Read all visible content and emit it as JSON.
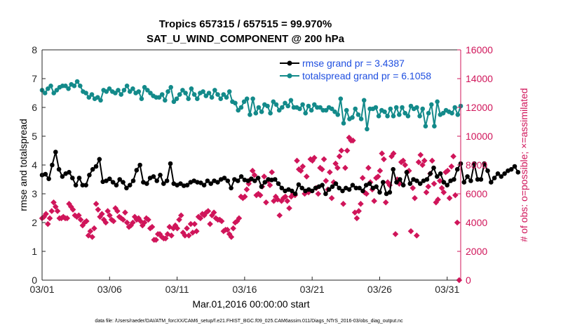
{
  "chart_data": {
    "type": "line",
    "title": "Tropics 657315 / 657515 = 99.970%",
    "subtitle": "SAT_U_WIND_COMPONENT @ 200 hPa",
    "xlabel": "Mar.01,2016 00:00:00 start",
    "ylabel": "rmse and totalspread",
    "y2label": "# of obs: o=possible; ×=assimilated",
    "footer": "data file: /Users/raeder/DAI/ATM_forcXX/CAM6_setup/f.e21.FHIST_BGC.f09_025.CAM6assim.011/Diags_NTrS_2016-03/obs_diag_output.nc",
    "xlim": [
      1,
      32
    ],
    "ylim": [
      0,
      8
    ],
    "y2lim": [
      0,
      16000
    ],
    "x_ticks": [
      1,
      6,
      11,
      16,
      21,
      26,
      31
    ],
    "x_tick_labels": [
      "03/01",
      "03/06",
      "03/11",
      "03/16",
      "03/21",
      "03/26",
      "03/31"
    ],
    "y_ticks": [
      "0",
      "1",
      "2",
      "3",
      "4",
      "5",
      "6",
      "7",
      "8"
    ],
    "y2_ticks": [
      "0",
      "2000",
      "4000",
      "6000",
      "8000",
      "10000",
      "12000",
      "14000",
      "16000"
    ],
    "colors": {
      "rmse": "#000000",
      "totalspread": "#138a8a",
      "obs": "#d0155a",
      "legend_text": "#1f4fe0",
      "axis_right": "#d0155a"
    },
    "legend": {
      "position": "top-right",
      "entries": [
        "rmse grand pr = 3.4387",
        "totalspread grand pr = 6.1058"
      ]
    },
    "series": [
      {
        "name": "rmse",
        "axis": "left",
        "values": [
          3.65,
          3.68,
          3.52,
          4.0,
          4.45,
          3.85,
          3.6,
          3.7,
          3.75,
          3.55,
          3.3,
          3.55,
          3.3,
          3.3,
          3.65,
          3.85,
          3.95,
          4.2,
          3.42,
          3.45,
          3.52,
          3.4,
          3.3,
          3.5,
          3.4,
          3.2,
          3.3,
          3.45,
          3.82,
          4.0,
          3.4,
          3.35,
          3.55,
          3.6,
          3.45,
          3.65,
          3.35,
          3.45,
          4.05,
          3.35,
          3.3,
          3.35,
          3.28,
          3.3,
          3.4,
          3.45,
          3.4,
          3.38,
          3.3,
          3.45,
          3.35,
          3.45,
          3.4,
          3.5,
          3.55,
          3.45,
          3.2,
          3.5,
          3.45,
          3.6,
          3.48,
          3.45,
          3.52,
          3.45,
          3.55,
          3.25,
          3.4,
          3.5,
          3.48,
          3.5,
          3.35,
          3.2,
          3.1,
          3.15,
          3.1,
          3.0,
          3.32,
          3.2,
          3.1,
          3.15,
          3.1,
          3.2,
          3.25,
          3.3,
          3.0,
          3.15,
          3.25,
          3.35,
          3.2,
          3.1,
          3.2,
          3.15,
          3.3,
          3.2,
          3.2,
          3.1,
          3.3,
          3.35,
          3.2,
          3.25,
          3.05,
          3.4,
          3.0,
          3.05,
          3.85,
          3.4,
          3.5,
          3.3,
          3.75,
          3.35,
          3.5,
          3.45,
          3.35,
          3.45,
          3.5,
          3.7,
          3.9,
          3.6,
          3.7,
          3.4,
          3.3,
          3.45,
          3.5,
          3.85,
          4.05,
          3.4,
          3.6,
          3.45,
          4.05,
          3.5,
          3.5,
          4.05,
          3.8,
          3.4,
          3.55,
          3.7,
          3.6,
          3.7,
          3.8,
          3.85,
          3.95,
          3.75
        ],
        "x_step": 0.25
      },
      {
        "name": "totalspread",
        "axis": "left",
        "values": [
          6.6,
          6.5,
          6.65,
          6.75,
          6.5,
          6.6,
          6.7,
          6.75,
          6.75,
          6.65,
          6.8,
          6.75,
          6.9,
          6.75,
          6.55,
          6.5,
          6.35,
          6.45,
          6.3,
          6.35,
          6.25,
          6.6,
          6.55,
          6.65,
          6.55,
          6.5,
          6.6,
          6.45,
          6.6,
          6.75,
          6.55,
          6.65,
          6.5,
          6.55,
          6.3,
          6.7,
          6.6,
          6.5,
          6.4,
          6.35,
          6.35,
          6.45,
          6.25,
          6.55,
          6.7,
          6.2,
          6.3,
          6.45,
          6.6,
          6.5,
          6.3,
          6.65,
          6.45,
          6.3,
          6.5,
          6.55,
          6.4,
          6.5,
          6.35,
          6.6,
          6.45,
          6.3,
          6.45,
          6.35,
          6.55,
          6.2,
          6.15,
          5.9,
          6.0,
          6.2,
          6.3,
          5.75,
          6.3,
          5.8,
          6.0,
          5.85,
          6.1,
          6.05,
          5.8,
          6.2,
          6.1,
          5.9,
          6.0,
          6.15,
          6.05,
          6.25,
          6.0,
          6.0,
          5.95,
          6.1,
          5.8,
          6.05,
          5.9,
          6.1,
          6.0,
          6.0,
          5.9,
          5.9,
          6.0,
          5.95,
          5.85,
          5.75,
          6.3,
          5.45,
          5.9,
          5.6,
          5.65,
          5.95,
          5.75,
          5.6,
          6.25,
          5.25,
          5.95,
          5.95,
          6.0,
          5.7,
          5.9,
          5.85,
          5.7,
          5.95,
          5.7,
          6.0,
          5.75,
          6.0,
          5.8,
          5.7,
          6.05,
          5.95,
          6.0,
          5.7,
          5.95,
          5.35,
          5.8,
          6.1,
          5.35,
          6.2,
          5.75,
          5.8,
          5.9,
          5.85,
          5.8,
          6.0,
          5.75,
          6.05
        ]
      },
      {
        "name": "obs_assimilated",
        "axis": "right",
        "values": [
          4300,
          4400,
          4600,
          3900,
          4300,
          4800,
          5400,
          5100,
          4800,
          4300,
          4300,
          4400,
          4300,
          4300,
          5300,
          5100,
          4900,
          4500,
          4400,
          4500,
          4200,
          3800,
          4000,
          4100,
          3100,
          3400,
          3000,
          3600,
          5300,
          4900,
          4400,
          4600,
          4200,
          4000,
          4800,
          4500,
          4200,
          4100,
          5000,
          4800,
          4400,
          4300,
          4200,
          4700,
          4000,
          3700,
          3800,
          4000,
          4400,
          4200,
          4300,
          4100,
          3800,
          4000,
          4300,
          4200,
          3600,
          3700,
          2800,
          2800,
          3200,
          3200,
          3000,
          2900,
          2900,
          3200,
          3700,
          3100,
          3600,
          3800,
          3600,
          4200,
          4500,
          3300,
          3100,
          3600,
          3100,
          3900,
          3300,
          3900,
          3400,
          4400,
          4300,
          4600,
          4500,
          4700,
          4800,
          3900,
          4500,
          4700,
          4300,
          4200,
          4200,
          4100,
          3400,
          3500,
          3500,
          3200,
          3000,
          3600,
          4000,
          4100,
          4300,
          5800,
          5700,
          5800,
          6300,
          6700,
          7000,
          7600,
          7300,
          5900,
          6000,
          5900,
          6500,
          7200,
          5400,
          6900,
          6600,
          7500,
          5500,
          5800,
          5600,
          4500,
          5500,
          5700,
          5800,
          5500,
          5000,
          5800,
          6000,
          5900,
          8300,
          7700,
          7600,
          7900,
          6000,
          7200,
          6100,
          8400,
          8300,
          8500,
          6400,
          6000,
          7800,
          7700,
          8400,
          6900,
          6300,
          7500,
          5700,
          6800,
          8100,
          7800,
          8600,
          9000,
          5300,
          7800,
          9000,
          9900,
          9700,
          9700,
          4700,
          4300,
          4800,
          5300,
          7100,
          6100,
          6000,
          7800,
          6800,
          6300,
          5500,
          7100,
          7200,
          7600,
          8800,
          8400,
          5400,
          6800,
          6600,
          8600,
          8800,
          3200,
          7000,
          6700,
          8200,
          8300,
          8000,
          7500,
          7600,
          3400,
          6400,
          5700,
          3100,
          8200,
          8700,
          8000,
          8300,
          6100,
          6500,
          7400,
          8300,
          6700,
          5400,
          5600,
          6900,
          6400,
          6100,
          7500,
          7600,
          5700,
          7900,
          8600,
          5900,
          4000,
          0
        ],
        "x_step": 0.143
      }
    ]
  }
}
